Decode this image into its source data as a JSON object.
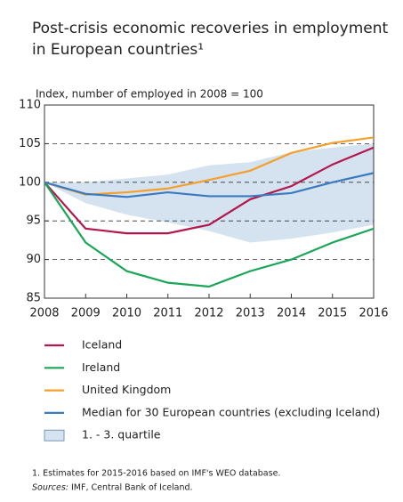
{
  "chart_data": {
    "type": "line",
    "title": [
      "Post-crisis economic recoveries in employment",
      "in European countries¹"
    ],
    "y_label": "Index, number of employed in 2008 = 100",
    "x": [
      2008,
      2009,
      2010,
      2011,
      2012,
      2013,
      2014,
      2015,
      2016
    ],
    "xlim": [
      2008,
      2016
    ],
    "xticks": [
      2008,
      2009,
      2010,
      2011,
      2012,
      2013,
      2014,
      2015,
      2016
    ],
    "ylim": [
      85,
      110
    ],
    "yticks": [
      85,
      90,
      95,
      100,
      105,
      110
    ],
    "grid": true,
    "band": {
      "name": "1. - 3. quartile",
      "color": "#d5e3f1",
      "upper": [
        100,
        100,
        100.5,
        101,
        102.2,
        102.6,
        103.9,
        104.5,
        105
      ],
      "lower": [
        100,
        97.3,
        95.8,
        94.8,
        93.7,
        92.2,
        92.7,
        93.5,
        94.5
      ]
    },
    "series": [
      {
        "name": "Iceland",
        "color": "#b5164b",
        "values": [
          100,
          94,
          93.4,
          93.4,
          94.5,
          97.8,
          99.5,
          102.3,
          104.5
        ]
      },
      {
        "name": "Ireland",
        "color": "#1aa657",
        "values": [
          100,
          92.2,
          88.5,
          87,
          86.5,
          88.5,
          90,
          92.2,
          94
        ]
      },
      {
        "name": "United Kingdom",
        "color": "#f5a02a",
        "values": [
          100,
          98.4,
          98.7,
          99.2,
          100.3,
          101.5,
          103.8,
          105.1,
          105.8
        ]
      },
      {
        "name": "Median for 30 European countries (excluding Iceland)",
        "color": "#3a7bc0",
        "values": [
          100,
          98.5,
          98.1,
          98.7,
          98.2,
          98.2,
          98.6,
          100,
          101.2
        ]
      }
    ],
    "footnote": "1. Estimates for 2015-2016 based on IMF's WEO database.",
    "sources_label": "Sources:",
    "sources": "IMF, Central Bank of Iceland."
  }
}
